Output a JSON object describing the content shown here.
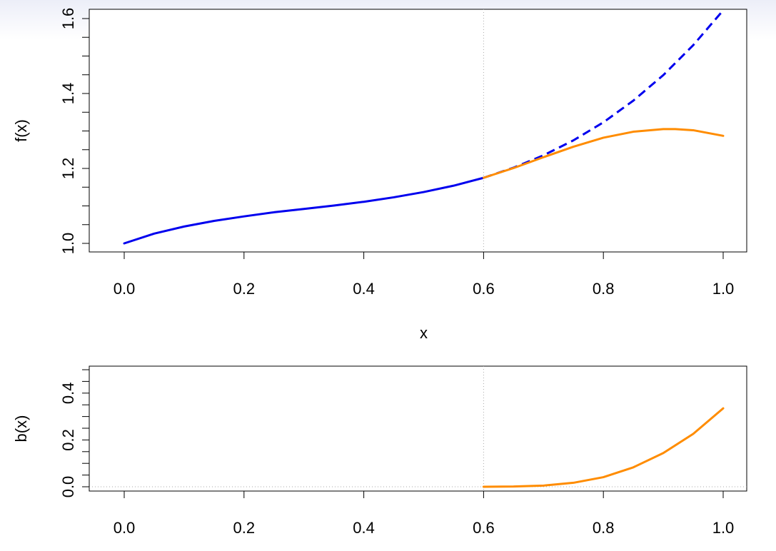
{
  "chart_data": [
    {
      "id": "top",
      "type": "line",
      "xlabel": "x",
      "ylabel": "f(x)",
      "xlim": [
        0.0,
        1.0
      ],
      "ylim": [
        1.0,
        1.6
      ],
      "x_ticks": [
        "0.0",
        "0.2",
        "0.4",
        "0.6",
        "0.8",
        "1.0"
      ],
      "y_ticks": [
        "1.0",
        "1.2",
        "1.4",
        "1.6"
      ],
      "vline_x": 0.6,
      "series": [
        {
          "color": "#0000ee",
          "style": "solid",
          "x": [
            0.0,
            0.05,
            0.1,
            0.15,
            0.2,
            0.25,
            0.3,
            0.35,
            0.4,
            0.45,
            0.5,
            0.55,
            0.6
          ],
          "y": [
            1.0,
            1.026,
            1.045,
            1.06,
            1.072,
            1.083,
            1.092,
            1.101,
            1.111,
            1.123,
            1.137,
            1.154,
            1.175
          ]
        },
        {
          "color": "#0000ee",
          "style": "dashed",
          "x": [
            0.6,
            0.65,
            0.7,
            0.75,
            0.8,
            0.85,
            0.9,
            0.95,
            1.0
          ],
          "y": [
            1.175,
            1.202,
            1.235,
            1.275,
            1.323,
            1.381,
            1.449,
            1.529,
            1.622
          ]
        },
        {
          "color": "#ff8c00",
          "style": "solid",
          "x": [
            0.6,
            0.65,
            0.7,
            0.75,
            0.8,
            0.85,
            0.9,
            0.92,
            0.95,
            1.0
          ],
          "y": [
            1.175,
            1.201,
            1.23,
            1.258,
            1.282,
            1.298,
            1.305,
            1.305,
            1.302,
            1.287
          ]
        }
      ]
    },
    {
      "id": "bottom",
      "type": "line",
      "xlabel": "",
      "ylabel": "b(x)",
      "xlim": [
        0.0,
        1.0
      ],
      "ylim": [
        0.0,
        0.5
      ],
      "x_ticks": [
        "0.0",
        "0.2",
        "0.4",
        "0.6",
        "0.8",
        "1.0"
      ],
      "y_ticks": [
        "0.0",
        "0.2",
        "0.4"
      ],
      "vline_x": 0.6,
      "hline_y": 0.0,
      "series": [
        {
          "color": "#ff8c00",
          "style": "solid",
          "x": [
            0.6,
            0.65,
            0.7,
            0.75,
            0.8,
            0.85,
            0.9,
            0.95,
            1.0
          ],
          "y": [
            0.0,
            0.001,
            0.005,
            0.017,
            0.041,
            0.083,
            0.144,
            0.226,
            0.335
          ]
        }
      ]
    }
  ]
}
